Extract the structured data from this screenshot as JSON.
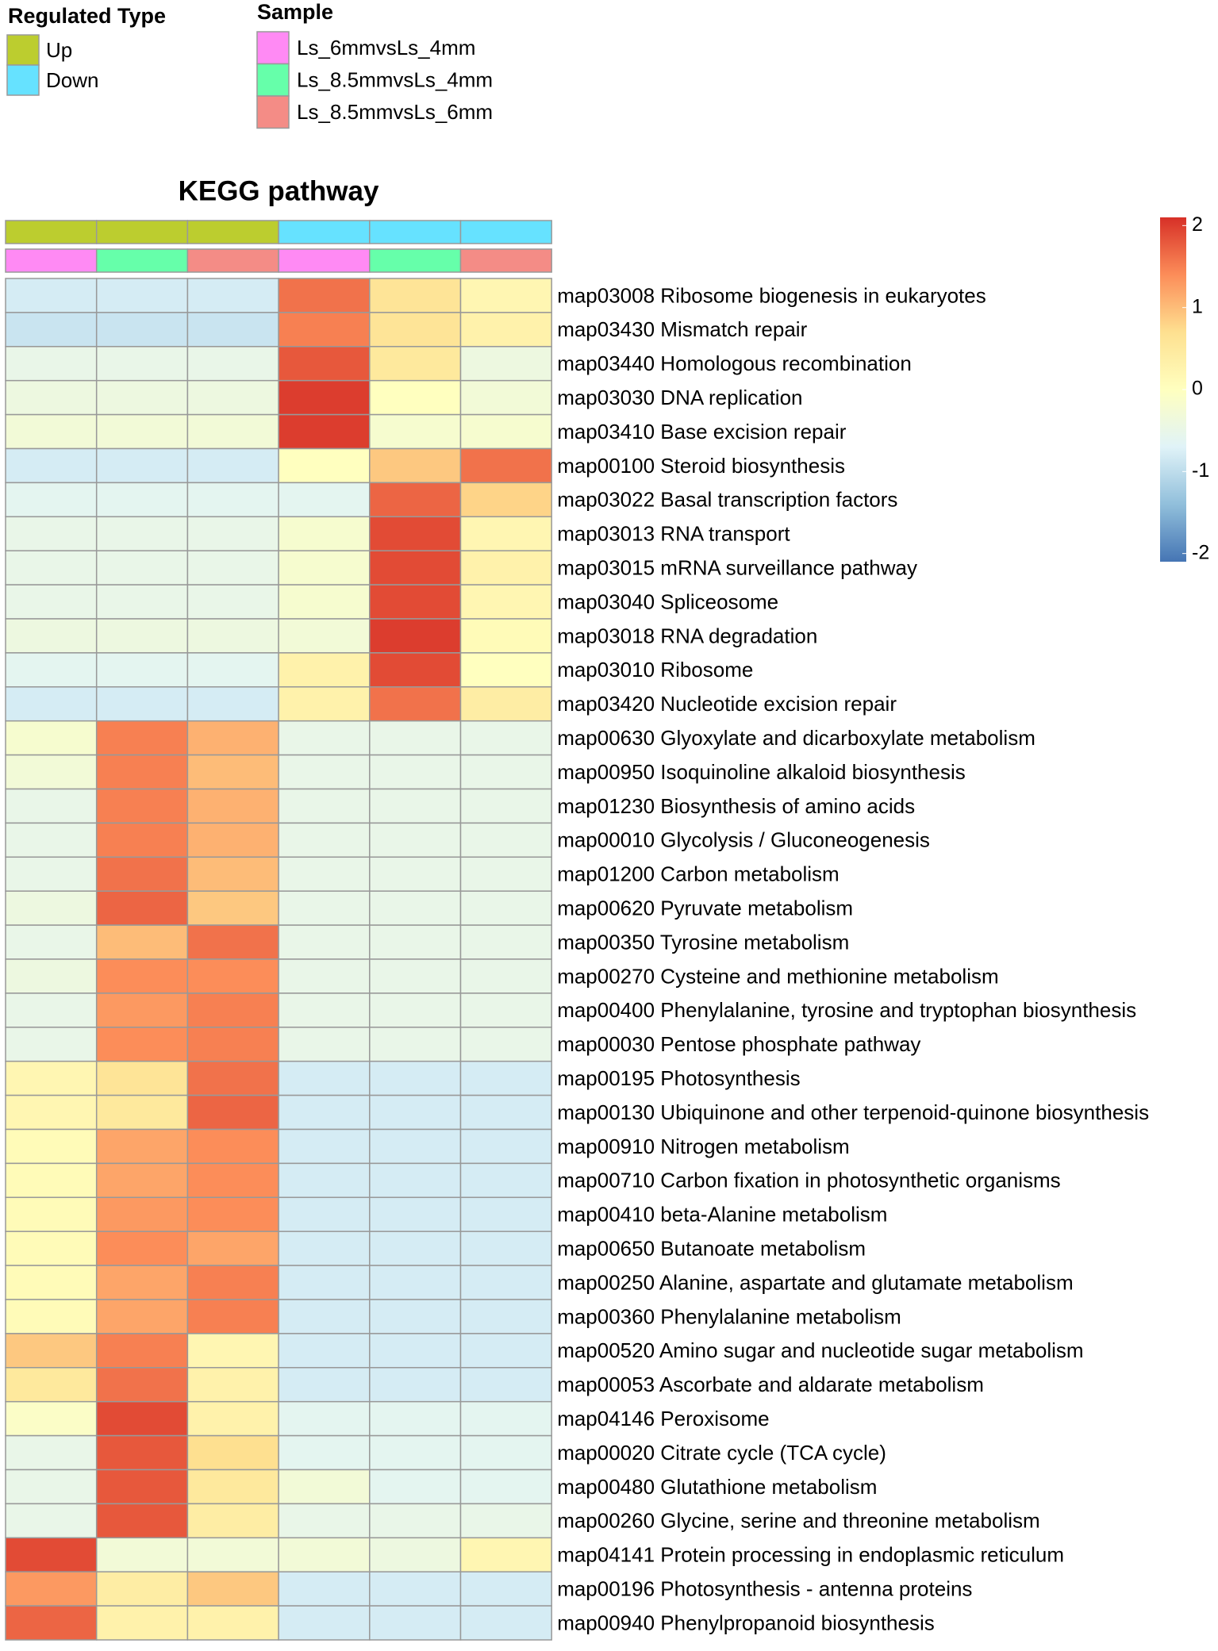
{
  "chart_data": {
    "type": "heatmap",
    "title": "KEGG pathway",
    "annotations": [
      {
        "name": "Regulated Type",
        "levels": [
          {
            "name": "Up",
            "color": "#bccd2f"
          },
          {
            "name": "Down",
            "color": "#66e2ff"
          }
        ],
        "values": [
          "Up",
          "Up",
          "Up",
          "Down",
          "Down",
          "Down"
        ]
      },
      {
        "name": "Sample",
        "levels": [
          {
            "name": "Ls_6mmvsLs_4mm",
            "color": "#ff8af4"
          },
          {
            "name": "Ls_8.5mmvsLs_4mm",
            "color": "#66ffaa"
          },
          {
            "name": "Ls_8.5mmvsLs_6mm",
            "color": "#f48c86"
          }
        ],
        "values": [
          "Ls_6mmvsLs_4mm",
          "Ls_8.5mmvsLs_4mm",
          "Ls_8.5mmvsLs_6mm",
          "Ls_6mmvsLs_4mm",
          "Ls_8.5mmvsLs_4mm",
          "Ls_8.5mmvsLs_6mm"
        ]
      }
    ],
    "rows": [
      "map03008 Ribosome biogenesis in eukaryotes",
      "map03430 Mismatch repair",
      "map03440 Homologous recombination",
      "map03030 DNA replication",
      "map03410 Base excision repair",
      "map00100 Steroid biosynthesis",
      "map03022 Basal transcription factors",
      "map03013 RNA transport",
      "map03015 mRNA surveillance pathway",
      "map03040 Spliceosome",
      "map03018 RNA degradation",
      "map03010 Ribosome",
      "map03420 Nucleotide excision repair",
      "map00630 Glyoxylate and dicarboxylate metabolism",
      "map00950 Isoquinoline alkaloid biosynthesis",
      "map01230 Biosynthesis of amino acids",
      "map00010 Glycolysis / Gluconeogenesis",
      "map01200 Carbon metabolism",
      "map00620 Pyruvate metabolism",
      "map00350 Tyrosine metabolism",
      "map00270 Cysteine and methionine metabolism",
      "map00400 Phenylalanine, tyrosine and tryptophan biosynthesis",
      "map00030 Pentose phosphate pathway",
      "map00195 Photosynthesis",
      "map00130 Ubiquinone and other terpenoid-quinone biosynthesis",
      "map00910 Nitrogen metabolism",
      "map00710 Carbon fixation in photosynthetic organisms",
      "map00410 beta-Alanine metabolism",
      "map00650 Butanoate metabolism",
      "map00250 Alanine, aspartate and glutamate metabolism",
      "map00360 Phenylalanine metabolism",
      "map00520 Amino sugar and nucleotide sugar metabolism",
      "map00053 Ascorbate and aldarate metabolism",
      "map04146 Peroxisome",
      "map00020 Citrate cycle (TCA cycle)",
      "map00480 Glutathione metabolism",
      "map00260 Glycine, serine and threonine metabolism",
      "map04141 Protein processing in endoplasmic reticulum",
      "map00196 Photosynthesis - antenna proteins",
      "map00940 Phenylpropanoid biosynthesis"
    ],
    "values": [
      [
        -0.8,
        -0.8,
        -0.8,
        1.6,
        0.6,
        0.2
      ],
      [
        -0.9,
        -0.9,
        -0.9,
        1.5,
        0.6,
        0.3
      ],
      [
        -0.5,
        -0.5,
        -0.5,
        1.8,
        0.5,
        -0.4
      ],
      [
        -0.4,
        -0.4,
        -0.4,
        2.0,
        0.0,
        -0.3
      ],
      [
        -0.3,
        -0.3,
        -0.3,
        2.0,
        -0.2,
        -0.2
      ],
      [
        -0.8,
        -0.8,
        -0.8,
        0.0,
        0.9,
        1.6
      ],
      [
        -0.6,
        -0.6,
        -0.6,
        -0.6,
        1.7,
        0.8
      ],
      [
        -0.5,
        -0.5,
        -0.5,
        -0.2,
        1.9,
        0.2
      ],
      [
        -0.5,
        -0.5,
        -0.5,
        -0.2,
        1.9,
        0.3
      ],
      [
        -0.5,
        -0.5,
        -0.5,
        -0.2,
        1.9,
        0.2
      ],
      [
        -0.4,
        -0.4,
        -0.4,
        -0.3,
        2.0,
        0.1
      ],
      [
        -0.6,
        -0.6,
        -0.6,
        0.3,
        1.9,
        0.0
      ],
      [
        -0.8,
        -0.8,
        -0.8,
        0.3,
        1.6,
        0.4
      ],
      [
        -0.2,
        1.5,
        1.1,
        -0.5,
        -0.5,
        -0.5
      ],
      [
        -0.3,
        1.5,
        1.0,
        -0.5,
        -0.5,
        -0.5
      ],
      [
        -0.5,
        1.5,
        1.1,
        -0.5,
        -0.5,
        -0.5
      ],
      [
        -0.5,
        1.5,
        1.1,
        -0.5,
        -0.5,
        -0.5
      ],
      [
        -0.5,
        1.6,
        1.0,
        -0.5,
        -0.5,
        -0.5
      ],
      [
        -0.4,
        1.7,
        0.9,
        -0.5,
        -0.5,
        -0.5
      ],
      [
        -0.5,
        1.0,
        1.6,
        -0.5,
        -0.5,
        -0.5
      ],
      [
        -0.4,
        1.4,
        1.4,
        -0.5,
        -0.5,
        -0.5
      ],
      [
        -0.5,
        1.3,
        1.5,
        -0.5,
        -0.5,
        -0.5
      ],
      [
        -0.5,
        1.4,
        1.5,
        -0.5,
        -0.5,
        -0.5
      ],
      [
        0.2,
        0.6,
        1.6,
        -0.8,
        -0.8,
        -0.8
      ],
      [
        0.2,
        0.5,
        1.7,
        -0.8,
        -0.8,
        -0.8
      ],
      [
        0.1,
        1.2,
        1.4,
        -0.8,
        -0.8,
        -0.8
      ],
      [
        0.1,
        1.2,
        1.4,
        -0.8,
        -0.8,
        -0.8
      ],
      [
        0.1,
        1.3,
        1.4,
        -0.8,
        -0.8,
        -0.8
      ],
      [
        0.1,
        1.4,
        1.2,
        -0.8,
        -0.8,
        -0.8
      ],
      [
        0.1,
        1.2,
        1.5,
        -0.8,
        -0.8,
        -0.8
      ],
      [
        0.1,
        1.2,
        1.5,
        -0.8,
        -0.8,
        -0.8
      ],
      [
        0.9,
        1.5,
        0.2,
        -0.8,
        -0.8,
        -0.8
      ],
      [
        0.5,
        1.6,
        0.3,
        -0.8,
        -0.8,
        -0.8
      ],
      [
        -0.1,
        1.9,
        0.3,
        -0.6,
        -0.6,
        -0.6
      ],
      [
        -0.5,
        1.8,
        0.7,
        -0.6,
        -0.6,
        -0.6
      ],
      [
        -0.5,
        1.8,
        0.5,
        -0.3,
        -0.6,
        -0.6
      ],
      [
        -0.5,
        1.8,
        0.4,
        -0.5,
        -0.5,
        -0.5
      ],
      [
        1.9,
        -0.3,
        -0.3,
        -0.3,
        -0.4,
        0.2
      ],
      [
        1.3,
        0.4,
        0.9,
        -0.8,
        -0.8,
        -0.8
      ],
      [
        1.7,
        0.3,
        0.3,
        -0.8,
        -0.8,
        -0.8
      ]
    ],
    "colors": [
      "#4575b4",
      "#91bfdb",
      "#e0f3f8",
      "#ffffbf",
      "#fee090",
      "#fc8d59",
      "#d73027"
    ],
    "zlim": [
      -2.1,
      2.1
    ],
    "colorbar_ticks": [
      2,
      1,
      0,
      -1,
      -2
    ]
  }
}
